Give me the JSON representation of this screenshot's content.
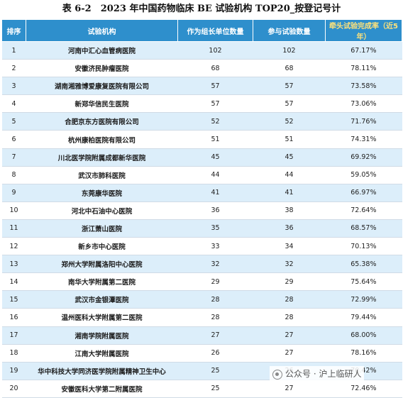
{
  "title": "表 6-2　2023 年中国药物临床 BE 试验机构 TOP20_按登记号计",
  "headers": [
    "排序",
    "试验机构",
    "作为组长单位数量",
    "参与试验数量",
    "牵头试验完成率（近5年）"
  ],
  "rows": [
    [
      "1",
      "河南中汇心血管病医院",
      "102",
      "102",
      "67.17%"
    ],
    [
      "2",
      "安徽济民肿瘤医院",
      "68",
      "68",
      "78.11%"
    ],
    [
      "3",
      "湖南湘雅博爱康复医院有限公司",
      "57",
      "57",
      "73.58%"
    ],
    [
      "4",
      "新郑华信民生医院",
      "57",
      "57",
      "73.06%"
    ],
    [
      "5",
      "合肥京东方医院有限公司",
      "52",
      "52",
      "71.76%"
    ],
    [
      "6",
      "杭州康柏医院有限公司",
      "51",
      "51",
      "74.31%"
    ],
    [
      "7",
      "川北医学院附属成都新华医院",
      "45",
      "45",
      "69.92%"
    ],
    [
      "8",
      "武汉市肺科医院",
      "44",
      "44",
      "59.05%"
    ],
    [
      "9",
      "东莞康华医院",
      "41",
      "41",
      "66.97%"
    ],
    [
      "10",
      "河北中石油中心医院",
      "36",
      "38",
      "72.64%"
    ],
    [
      "11",
      "浙江萧山医院",
      "35",
      "36",
      "68.57%"
    ],
    [
      "12",
      "新乡市中心医院",
      "33",
      "34",
      "70.13%"
    ],
    [
      "13",
      "郑州大学附属洛阳中心医院",
      "32",
      "32",
      "65.38%"
    ],
    [
      "14",
      "南华大学附属第二医院",
      "29",
      "29",
      "75.64%"
    ],
    [
      "15",
      "武汉市金银潭医院",
      "28",
      "28",
      "72.99%"
    ],
    [
      "16",
      "温州医科大学附属第二医院",
      "28",
      "28",
      "79.44%"
    ],
    [
      "17",
      "湘南学院附属医院",
      "27",
      "27",
      "68.00%"
    ],
    [
      "18",
      "江南大学附属医院",
      "26",
      "27",
      "78.16%"
    ],
    [
      "19",
      "华中科技大学同济医学院附属精神卫生中心",
      "25",
      "26",
      "70.42%"
    ],
    [
      "20",
      "安徽医科大学第二附属医院",
      "25",
      "27",
      "72.46%"
    ]
  ],
  "watermark": "公众号 · 沪上临研人"
}
